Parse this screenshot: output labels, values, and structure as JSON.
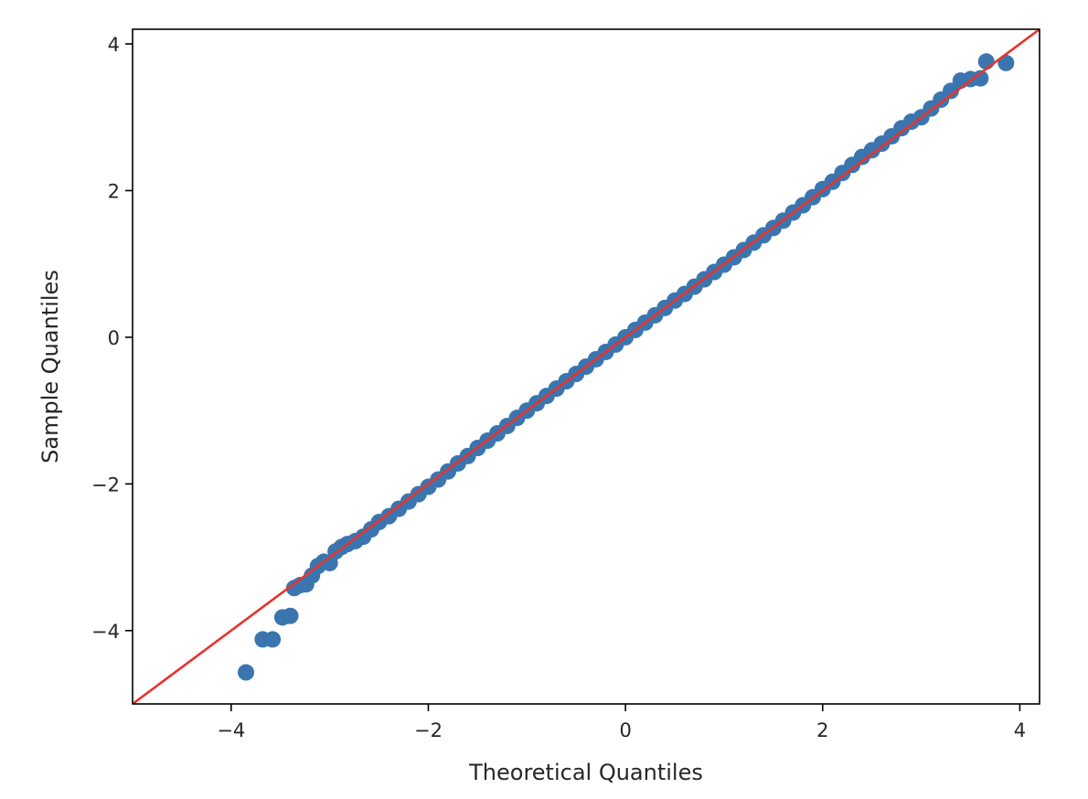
{
  "chart_data": {
    "type": "scatter",
    "title": "",
    "xlabel": "Theoretical Quantiles",
    "ylabel": "Sample Quantiles",
    "xlim": [
      -5.0,
      4.2
    ],
    "ylim": [
      -5.0,
      4.2
    ],
    "xticks": [
      -4,
      -2,
      0,
      2,
      4
    ],
    "xtick_labels": [
      "−4",
      "−2",
      "0",
      "2",
      "4"
    ],
    "yticks": [
      -4,
      -2,
      0,
      2,
      4
    ],
    "ytick_labels": [
      "−4",
      "−2",
      "0",
      "2",
      "4"
    ],
    "grid": false,
    "series": [
      {
        "kind": "points",
        "color": "#3b75af",
        "points": [
          [
            -3.85,
            -4.57
          ],
          [
            -3.68,
            -4.12
          ],
          [
            -3.58,
            -4.12
          ],
          [
            -3.48,
            -3.82
          ],
          [
            -3.4,
            -3.8
          ],
          [
            -3.36,
            -3.42
          ],
          [
            -3.3,
            -3.38
          ],
          [
            -3.24,
            -3.37
          ],
          [
            -3.18,
            -3.25
          ],
          [
            -3.12,
            -3.12
          ],
          [
            -3.06,
            -3.06
          ],
          [
            -3.0,
            -3.08
          ],
          [
            -2.94,
            -2.92
          ],
          [
            -2.88,
            -2.86
          ],
          [
            -2.82,
            -2.82
          ],
          [
            -2.74,
            -2.78
          ],
          [
            -2.66,
            -2.72
          ],
          [
            -2.58,
            -2.62
          ],
          [
            -2.5,
            -2.52
          ],
          [
            -2.4,
            -2.44
          ],
          [
            -2.3,
            -2.34
          ],
          [
            -2.2,
            -2.24
          ],
          [
            -2.1,
            -2.14
          ],
          [
            -2.0,
            -2.04
          ],
          [
            -1.9,
            -1.94
          ],
          [
            -1.8,
            -1.83
          ],
          [
            -1.7,
            -1.72
          ],
          [
            -1.6,
            -1.62
          ],
          [
            -1.5,
            -1.51
          ],
          [
            -1.4,
            -1.41
          ],
          [
            -1.3,
            -1.31
          ],
          [
            -1.2,
            -1.21
          ],
          [
            -1.1,
            -1.1
          ],
          [
            -1.0,
            -1.0
          ],
          [
            -0.9,
            -0.9
          ],
          [
            -0.8,
            -0.8
          ],
          [
            -0.7,
            -0.7
          ],
          [
            -0.6,
            -0.6
          ],
          [
            -0.5,
            -0.5
          ],
          [
            -0.4,
            -0.4
          ],
          [
            -0.3,
            -0.3
          ],
          [
            -0.2,
            -0.2
          ],
          [
            -0.1,
            -0.1
          ],
          [
            0.0,
            0.0
          ],
          [
            0.1,
            0.1
          ],
          [
            0.2,
            0.2
          ],
          [
            0.3,
            0.3
          ],
          [
            0.4,
            0.4
          ],
          [
            0.5,
            0.5
          ],
          [
            0.6,
            0.59
          ],
          [
            0.7,
            0.69
          ],
          [
            0.8,
            0.79
          ],
          [
            0.9,
            0.89
          ],
          [
            1.0,
            0.99
          ],
          [
            1.1,
            1.09
          ],
          [
            1.2,
            1.19
          ],
          [
            1.3,
            1.29
          ],
          [
            1.4,
            1.39
          ],
          [
            1.5,
            1.49
          ],
          [
            1.6,
            1.59
          ],
          [
            1.7,
            1.7
          ],
          [
            1.8,
            1.8
          ],
          [
            1.9,
            1.91
          ],
          [
            2.0,
            2.02
          ],
          [
            2.1,
            2.12
          ],
          [
            2.2,
            2.24
          ],
          [
            2.3,
            2.35
          ],
          [
            2.4,
            2.46
          ],
          [
            2.5,
            2.55
          ],
          [
            2.6,
            2.64
          ],
          [
            2.7,
            2.74
          ],
          [
            2.8,
            2.85
          ],
          [
            2.9,
            2.94
          ],
          [
            3.0,
            3.0
          ],
          [
            3.1,
            3.12
          ],
          [
            3.2,
            3.24
          ],
          [
            3.3,
            3.36
          ],
          [
            3.4,
            3.5
          ],
          [
            3.5,
            3.52
          ],
          [
            3.6,
            3.53
          ],
          [
            3.66,
            3.76
          ],
          [
            3.86,
            3.74
          ]
        ]
      },
      {
        "kind": "reference-line",
        "color": "#e8332a",
        "slope": 1,
        "intercept": 0
      }
    ]
  }
}
